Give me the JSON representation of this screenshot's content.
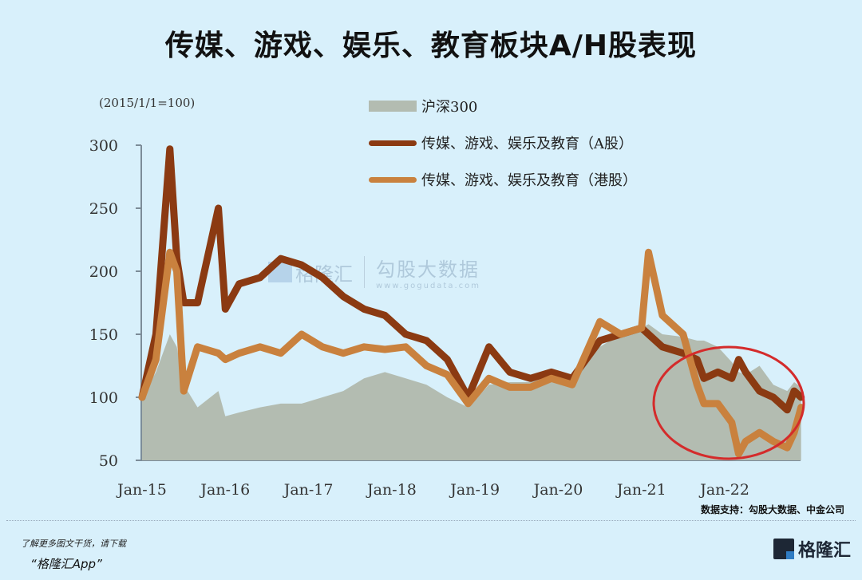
{
  "title": "传媒、游戏、娱乐、教育板块A/H股表现",
  "unit_label": "(2015/1/1=100)",
  "legend": [
    {
      "label": "沪深300",
      "kind": "area",
      "color": "#b3bcb1"
    },
    {
      "label": "传媒、游戏、娱乐及教育（A股）",
      "kind": "line",
      "color": "#8b3a12"
    },
    {
      "label": "传媒、游戏、娱乐及教育（港股）",
      "kind": "line",
      "color": "#c9813e"
    }
  ],
  "watermark": {
    "brand": "格隆汇",
    "sub": "勾股大数据",
    "url": "www.gogudata.com"
  },
  "source": "数据支持：勾股大数据、中金公司",
  "promo": {
    "line1": "了解更多图文干货，请下载",
    "line2": "“格隆汇App”"
  },
  "brand_logo": "格隆汇",
  "highlight": {
    "shape": "ellipse",
    "color": "#d42b2b",
    "region": "Jun-21 to end-22"
  },
  "chart_data": {
    "type": "line",
    "title": "传媒、游戏、娱乐、教育板块A/H股表现",
    "ylabel": "(2015/1/1=100)",
    "xlabel": "",
    "ylim": [
      50,
      300
    ],
    "yticks": [
      50,
      100,
      150,
      200,
      250,
      300
    ],
    "xticks": [
      "Jan-15",
      "Jan-16",
      "Jan-17",
      "Jan-18",
      "Jan-19",
      "Jan-20",
      "Jan-21",
      "Jan-22"
    ],
    "grid": false,
    "legend_position": "top-center",
    "x": [
      "2015-01",
      "2015-03",
      "2015-05",
      "2015-06",
      "2015-07",
      "2015-09",
      "2015-12",
      "2016-01",
      "2016-03",
      "2016-06",
      "2016-09",
      "2016-12",
      "2017-03",
      "2017-06",
      "2017-09",
      "2017-12",
      "2018-03",
      "2018-06",
      "2018-09",
      "2018-12",
      "2019-03",
      "2019-06",
      "2019-09",
      "2019-12",
      "2020-03",
      "2020-07",
      "2020-10",
      "2021-01",
      "2021-02",
      "2021-04",
      "2021-07",
      "2021-09",
      "2021-10",
      "2021-12",
      "2022-02",
      "2022-03",
      "2022-04",
      "2022-06",
      "2022-08",
      "2022-10",
      "2022-11",
      "2022-12"
    ],
    "series": [
      {
        "name": "沪深300",
        "kind": "area",
        "values": [
          100,
          120,
          150,
          140,
          110,
          92,
          105,
          85,
          88,
          92,
          95,
          95,
          100,
          105,
          115,
          120,
          115,
          110,
          100,
          92,
          110,
          112,
          112,
          120,
          115,
          140,
          150,
          155,
          158,
          150,
          148,
          145,
          145,
          140,
          128,
          120,
          118,
          125,
          110,
          105,
          112,
          108
        ]
      },
      {
        "name": "传媒、游戏、娱乐及教育（A股）",
        "kind": "line",
        "values": [
          100,
          150,
          297,
          210,
          175,
          175,
          250,
          170,
          190,
          195,
          210,
          205,
          195,
          180,
          170,
          165,
          150,
          145,
          130,
          100,
          140,
          120,
          115,
          120,
          115,
          145,
          150,
          155,
          150,
          140,
          135,
          130,
          115,
          120,
          115,
          130,
          120,
          105,
          100,
          90,
          105,
          100
        ]
      },
      {
        "name": "传媒、游戏、娱乐及教育（港股）",
        "kind": "line",
        "values": [
          100,
          130,
          215,
          200,
          105,
          140,
          135,
          130,
          135,
          140,
          135,
          150,
          140,
          135,
          140,
          138,
          140,
          125,
          118,
          95,
          115,
          108,
          108,
          115,
          110,
          160,
          150,
          155,
          215,
          165,
          150,
          110,
          95,
          95,
          80,
          55,
          65,
          72,
          65,
          60,
          72,
          92
        ]
      }
    ]
  }
}
